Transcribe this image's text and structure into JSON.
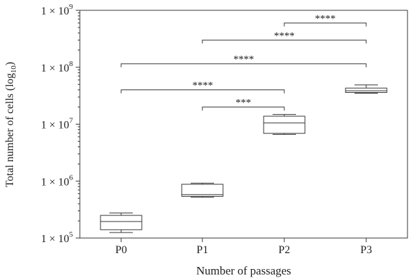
{
  "chart_data": {
    "type": "box",
    "ylabel": "Total number of cells (log",
    "ylabel_sub": "10",
    "ylabel_close": ")",
    "xlabel": "Number of passages",
    "yscale": "log",
    "ylim": [
      100000,
      1000000000
    ],
    "yticks": [
      {
        "value": 100000,
        "base": "1 × 10",
        "exp": "5"
      },
      {
        "value": 1000000,
        "base": "1 × 10",
        "exp": "6"
      },
      {
        "value": 10000000,
        "base": "1 × 10",
        "exp": "7"
      },
      {
        "value": 100000000,
        "base": "1 × 10",
        "exp": "8"
      },
      {
        "value": 1000000000,
        "base": "1 × 10",
        "exp": "9"
      }
    ],
    "categories": [
      "P0",
      "P1",
      "P2",
      "P3"
    ],
    "boxes": [
      {
        "category": "P0",
        "min": 125000,
        "q1": 140000,
        "median": 195000,
        "q3": 250000,
        "max": 275000
      },
      {
        "category": "P1",
        "min": 520000,
        "q1": 540000,
        "median": 580000,
        "q3": 880000,
        "max": 920000
      },
      {
        "category": "P2",
        "min": 6600000,
        "q1": 6900000,
        "median": 10500000,
        "q3": 13800000,
        "max": 14800000
      },
      {
        "category": "P3",
        "min": 35000000,
        "q1": 36000000,
        "median": 38500000,
        "q3": 43000000,
        "max": 49000000
      }
    ],
    "significance": [
      {
        "from": "P2",
        "to": "P3",
        "y": 600000000,
        "label": "****"
      },
      {
        "from": "P1",
        "to": "P3",
        "y": 300000000,
        "label": "****"
      },
      {
        "from": "P0",
        "to": "P3",
        "y": 115000000,
        "label": "****"
      },
      {
        "from": "P0",
        "to": "P2",
        "y": 40000000,
        "label": "****"
      },
      {
        "from": "P1",
        "to": "P2",
        "y": 20000000,
        "label": "***"
      }
    ]
  }
}
